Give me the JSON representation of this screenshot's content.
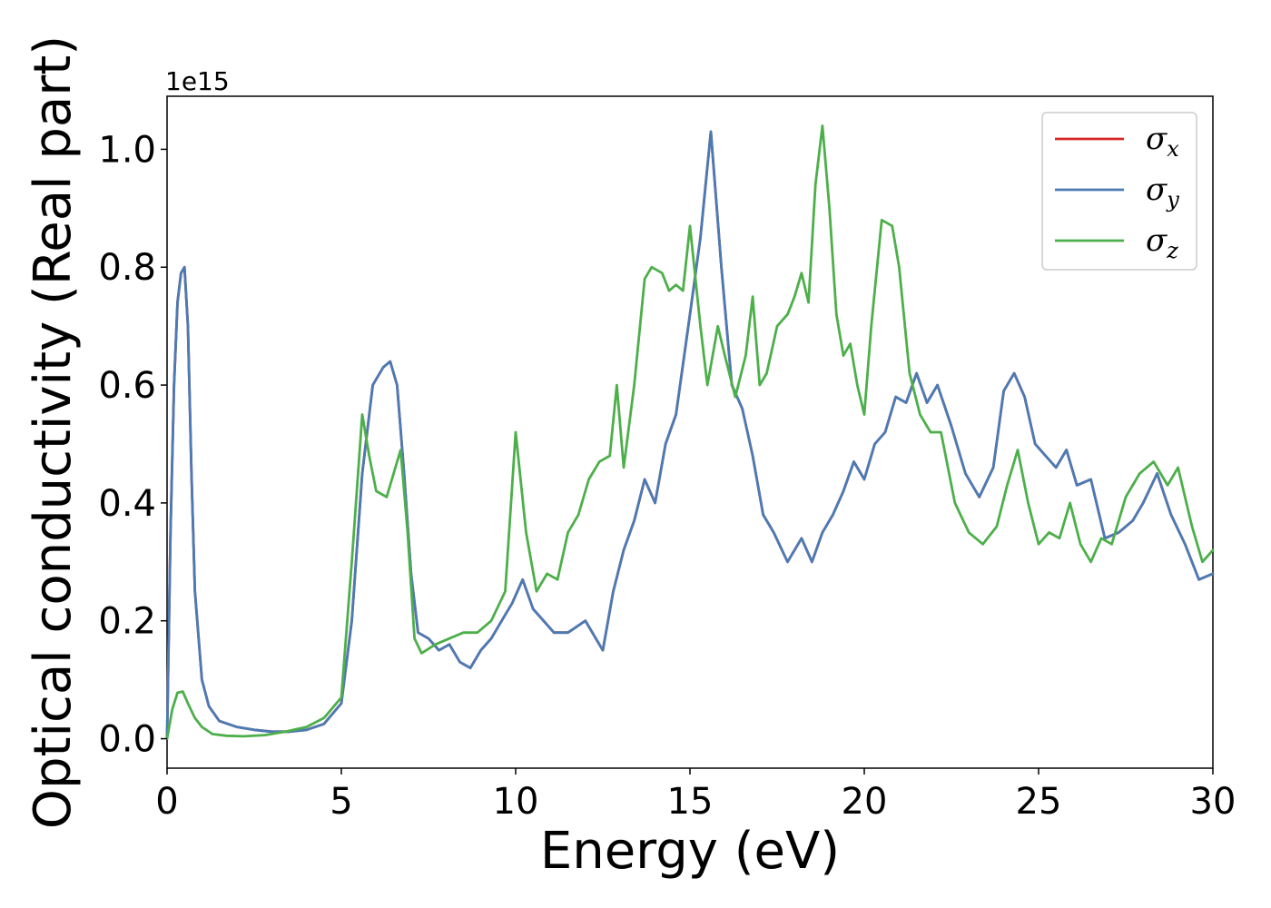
{
  "chart_data": {
    "type": "line",
    "xlabel": "Energy (eV)",
    "ylabel": "Optical conductivity (Real part)",
    "y_offset_text": "1e15",
    "xlim": [
      0,
      30
    ],
    "ylim": [
      -0.05,
      1.09
    ],
    "x_ticks": [
      0,
      5,
      10,
      15,
      20,
      25,
      30
    ],
    "x_tick_labels": [
      "0",
      "5",
      "10",
      "15",
      "20",
      "25",
      "30"
    ],
    "y_ticks": [
      0.0,
      0.2,
      0.4,
      0.6,
      0.8,
      1.0
    ],
    "y_tick_labels": [
      "0.0",
      "0.2",
      "0.4",
      "0.6",
      "0.8",
      "1.0"
    ],
    "grid": false,
    "legend_position": "top-right",
    "series": [
      {
        "name": "σx",
        "symbol": "σ",
        "subscript": "x",
        "color": "#d62728",
        "x": [
          0,
          0.1,
          0.2,
          0.3,
          0.4,
          0.5,
          0.6,
          0.7,
          0.8,
          1.0,
          1.2,
          1.5,
          2.0,
          2.5,
          3.0,
          3.5,
          4.0,
          4.5,
          5.0,
          5.3,
          5.6,
          5.9,
          6.2,
          6.4,
          6.6,
          6.8,
          7.0,
          7.2,
          7.5,
          7.8,
          8.1,
          8.4,
          8.7,
          9.0,
          9.3,
          9.6,
          9.9,
          10.2,
          10.5,
          10.8,
          11.1,
          11.5,
          12.0,
          12.5,
          12.8,
          13.1,
          13.4,
          13.7,
          14.0,
          14.3,
          14.6,
          15.0,
          15.3,
          15.6,
          15.9,
          16.2,
          16.5,
          16.8,
          17.1,
          17.4,
          17.8,
          18.2,
          18.5,
          18.8,
          19.1,
          19.4,
          19.7,
          20.0,
          20.3,
          20.6,
          20.9,
          21.2,
          21.5,
          21.8,
          22.1,
          22.5,
          22.9,
          23.3,
          23.7,
          24.0,
          24.3,
          24.6,
          24.9,
          25.2,
          25.5,
          25.8,
          26.1,
          26.5,
          26.9,
          27.3,
          27.7,
          28.0,
          28.4,
          28.8,
          29.2,
          29.6,
          30.0
        ],
        "y": [
          0.0,
          0.35,
          0.6,
          0.74,
          0.79,
          0.8,
          0.7,
          0.45,
          0.25,
          0.1,
          0.055,
          0.03,
          0.02,
          0.015,
          0.012,
          0.012,
          0.015,
          0.025,
          0.06,
          0.2,
          0.45,
          0.6,
          0.63,
          0.64,
          0.6,
          0.45,
          0.28,
          0.18,
          0.17,
          0.15,
          0.16,
          0.13,
          0.12,
          0.15,
          0.17,
          0.2,
          0.23,
          0.27,
          0.22,
          0.2,
          0.18,
          0.18,
          0.2,
          0.15,
          0.25,
          0.32,
          0.37,
          0.44,
          0.4,
          0.5,
          0.55,
          0.72,
          0.85,
          1.03,
          0.8,
          0.6,
          0.56,
          0.48,
          0.38,
          0.35,
          0.3,
          0.34,
          0.3,
          0.35,
          0.38,
          0.42,
          0.47,
          0.44,
          0.5,
          0.52,
          0.58,
          0.57,
          0.62,
          0.57,
          0.6,
          0.53,
          0.45,
          0.41,
          0.46,
          0.59,
          0.62,
          0.58,
          0.5,
          0.48,
          0.46,
          0.49,
          0.43,
          0.44,
          0.34,
          0.35,
          0.37,
          0.4,
          0.45,
          0.38,
          0.33,
          0.27,
          0.28
        ]
      },
      {
        "name": "σy",
        "symbol": "σ",
        "subscript": "y",
        "color": "#4a7bb5",
        "x": [
          0,
          0.1,
          0.2,
          0.3,
          0.4,
          0.5,
          0.6,
          0.7,
          0.8,
          1.0,
          1.2,
          1.5,
          2.0,
          2.5,
          3.0,
          3.5,
          4.0,
          4.5,
          5.0,
          5.3,
          5.6,
          5.9,
          6.2,
          6.4,
          6.6,
          6.8,
          7.0,
          7.2,
          7.5,
          7.8,
          8.1,
          8.4,
          8.7,
          9.0,
          9.3,
          9.6,
          9.9,
          10.2,
          10.5,
          10.8,
          11.1,
          11.5,
          12.0,
          12.5,
          12.8,
          13.1,
          13.4,
          13.7,
          14.0,
          14.3,
          14.6,
          15.0,
          15.3,
          15.6,
          15.9,
          16.2,
          16.5,
          16.8,
          17.1,
          17.4,
          17.8,
          18.2,
          18.5,
          18.8,
          19.1,
          19.4,
          19.7,
          20.0,
          20.3,
          20.6,
          20.9,
          21.2,
          21.5,
          21.8,
          22.1,
          22.5,
          22.9,
          23.3,
          23.7,
          24.0,
          24.3,
          24.6,
          24.9,
          25.2,
          25.5,
          25.8,
          26.1,
          26.5,
          26.9,
          27.3,
          27.7,
          28.0,
          28.4,
          28.8,
          29.2,
          29.6,
          30.0
        ],
        "y": [
          0.0,
          0.35,
          0.6,
          0.74,
          0.79,
          0.8,
          0.7,
          0.45,
          0.25,
          0.1,
          0.055,
          0.03,
          0.02,
          0.015,
          0.012,
          0.012,
          0.015,
          0.025,
          0.06,
          0.2,
          0.45,
          0.6,
          0.63,
          0.64,
          0.6,
          0.45,
          0.28,
          0.18,
          0.17,
          0.15,
          0.16,
          0.13,
          0.12,
          0.15,
          0.17,
          0.2,
          0.23,
          0.27,
          0.22,
          0.2,
          0.18,
          0.18,
          0.2,
          0.15,
          0.25,
          0.32,
          0.37,
          0.44,
          0.4,
          0.5,
          0.55,
          0.72,
          0.85,
          1.03,
          0.8,
          0.6,
          0.56,
          0.48,
          0.38,
          0.35,
          0.3,
          0.34,
          0.3,
          0.35,
          0.38,
          0.42,
          0.47,
          0.44,
          0.5,
          0.52,
          0.58,
          0.57,
          0.62,
          0.57,
          0.6,
          0.53,
          0.45,
          0.41,
          0.46,
          0.59,
          0.62,
          0.58,
          0.5,
          0.48,
          0.46,
          0.49,
          0.43,
          0.44,
          0.34,
          0.35,
          0.37,
          0.4,
          0.45,
          0.38,
          0.33,
          0.27,
          0.28
        ]
      },
      {
        "name": "σz",
        "symbol": "σ",
        "subscript": "z",
        "color": "#4daf4a",
        "x": [
          0,
          0.15,
          0.3,
          0.45,
          0.6,
          0.8,
          1.0,
          1.3,
          1.7,
          2.2,
          2.8,
          3.4,
          4.0,
          4.5,
          5.0,
          5.3,
          5.6,
          5.8,
          6.0,
          6.3,
          6.5,
          6.7,
          6.9,
          7.1,
          7.3,
          7.7,
          8.1,
          8.5,
          8.9,
          9.3,
          9.7,
          10.0,
          10.3,
          10.6,
          10.9,
          11.2,
          11.5,
          11.8,
          12.1,
          12.4,
          12.7,
          12.9,
          13.1,
          13.4,
          13.7,
          13.9,
          14.2,
          14.4,
          14.6,
          14.8,
          15.0,
          15.3,
          15.5,
          15.8,
          16.0,
          16.3,
          16.6,
          16.8,
          17.0,
          17.2,
          17.5,
          17.8,
          18.0,
          18.2,
          18.4,
          18.6,
          18.8,
          19.0,
          19.2,
          19.4,
          19.6,
          19.8,
          20.0,
          20.2,
          20.5,
          20.8,
          21.0,
          21.3,
          21.6,
          21.9,
          22.2,
          22.6,
          23.0,
          23.4,
          23.8,
          24.1,
          24.4,
          24.7,
          25.0,
          25.3,
          25.6,
          25.9,
          26.2,
          26.5,
          26.8,
          27.1,
          27.5,
          27.9,
          28.3,
          28.7,
          29.0,
          29.4,
          29.7,
          30.0
        ],
        "y": [
          0.0,
          0.05,
          0.078,
          0.08,
          0.06,
          0.035,
          0.02,
          0.008,
          0.005,
          0.004,
          0.006,
          0.012,
          0.02,
          0.035,
          0.07,
          0.3,
          0.55,
          0.48,
          0.42,
          0.41,
          0.45,
          0.49,
          0.35,
          0.17,
          0.145,
          0.16,
          0.17,
          0.18,
          0.18,
          0.2,
          0.25,
          0.52,
          0.35,
          0.25,
          0.28,
          0.27,
          0.35,
          0.38,
          0.44,
          0.47,
          0.48,
          0.6,
          0.46,
          0.6,
          0.78,
          0.8,
          0.79,
          0.76,
          0.77,
          0.76,
          0.87,
          0.7,
          0.6,
          0.7,
          0.65,
          0.58,
          0.65,
          0.75,
          0.6,
          0.62,
          0.7,
          0.72,
          0.75,
          0.79,
          0.74,
          0.94,
          1.04,
          0.9,
          0.72,
          0.65,
          0.67,
          0.6,
          0.55,
          0.7,
          0.88,
          0.87,
          0.8,
          0.62,
          0.55,
          0.52,
          0.52,
          0.4,
          0.35,
          0.33,
          0.36,
          0.43,
          0.49,
          0.4,
          0.33,
          0.35,
          0.34,
          0.4,
          0.33,
          0.3,
          0.34,
          0.33,
          0.41,
          0.45,
          0.47,
          0.43,
          0.46,
          0.36,
          0.3,
          0.32
        ]
      }
    ]
  }
}
